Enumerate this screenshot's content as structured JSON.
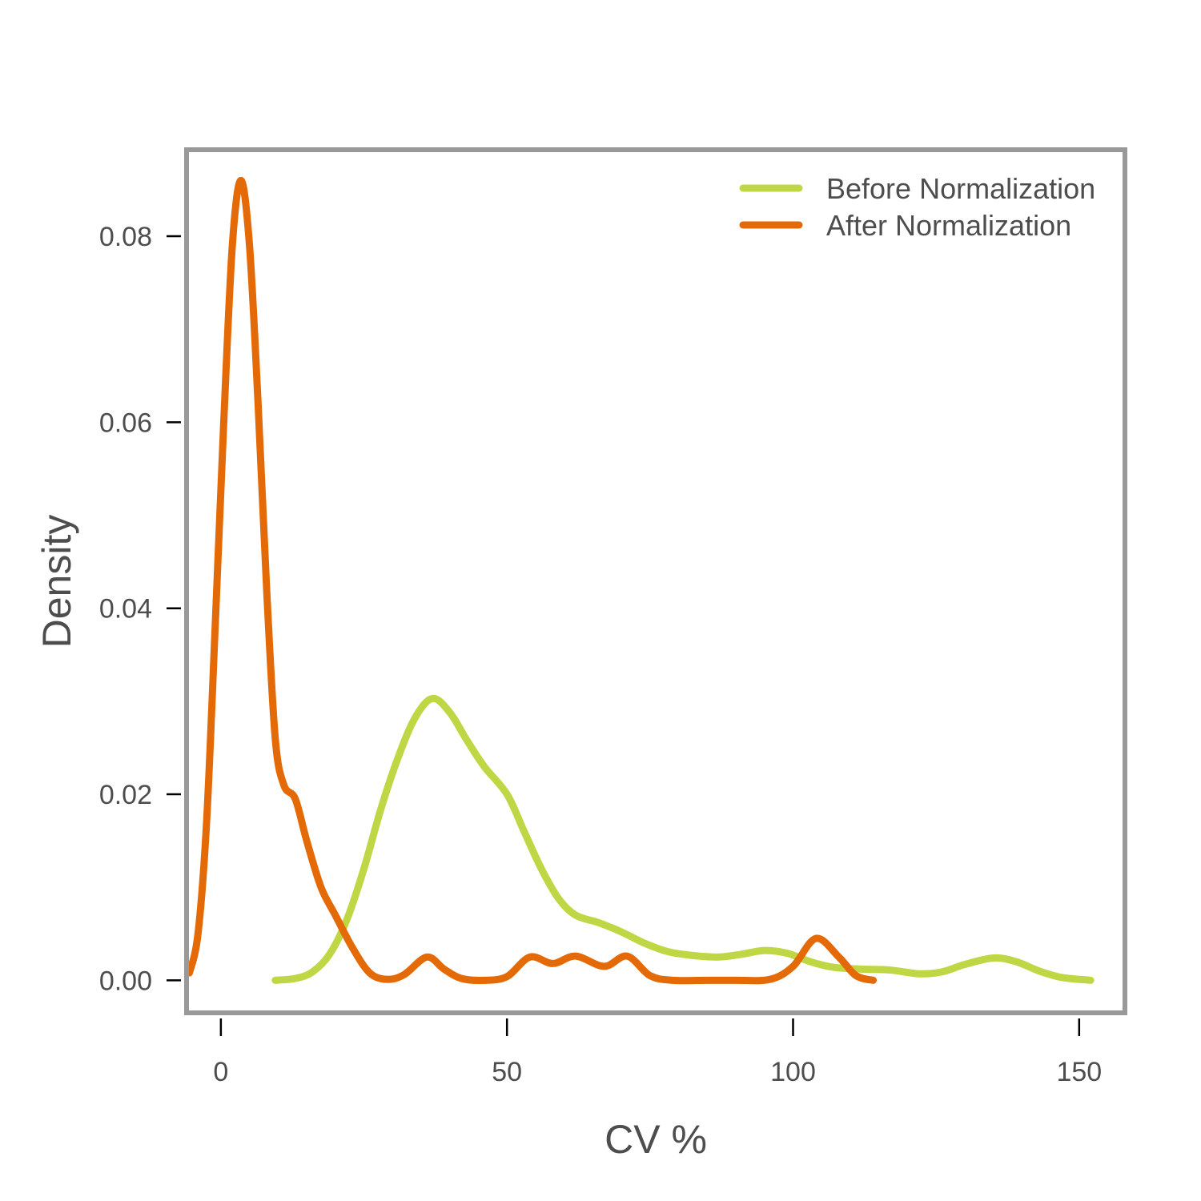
{
  "chart_data": {
    "type": "line",
    "title": "",
    "xlabel": "CV %",
    "ylabel": "Density",
    "xlim": [
      -6,
      158
    ],
    "ylim": [
      -0.0035,
      0.0893
    ],
    "x_ticks": [
      0,
      50,
      100,
      150
    ],
    "y_ticks": [
      0.0,
      0.02,
      0.04,
      0.06,
      0.08
    ],
    "x_tick_labels": [
      "0",
      "50",
      "100",
      "150"
    ],
    "y_tick_labels": [
      "0.00",
      "0.02",
      "0.04",
      "0.06",
      "0.08"
    ],
    "grid": false,
    "legend_position": "top-right",
    "frame_color": "#999999",
    "series": [
      {
        "name": "Before Normalization",
        "color": "#bfd744",
        "points": [
          [
            9.5,
            0.0
          ],
          [
            13,
            0.0002
          ],
          [
            16,
            0.0009
          ],
          [
            19,
            0.0028
          ],
          [
            22,
            0.0065
          ],
          [
            25,
            0.012
          ],
          [
            28,
            0.0185
          ],
          [
            31,
            0.024
          ],
          [
            34,
            0.0283
          ],
          [
            37,
            0.0303
          ],
          [
            40,
            0.0288
          ],
          [
            43,
            0.0258
          ],
          [
            46,
            0.023
          ],
          [
            50,
            0.02
          ],
          [
            53,
            0.016
          ],
          [
            56,
            0.012
          ],
          [
            59,
            0.0088
          ],
          [
            62,
            0.007
          ],
          [
            66,
            0.0062
          ],
          [
            70,
            0.0052
          ],
          [
            74,
            0.004
          ],
          [
            78,
            0.0031
          ],
          [
            82,
            0.0027
          ],
          [
            87,
            0.0025
          ],
          [
            91,
            0.0028
          ],
          [
            95,
            0.0032
          ],
          [
            99,
            0.0029
          ],
          [
            103,
            0.002
          ],
          [
            107,
            0.0014
          ],
          [
            112,
            0.0012
          ],
          [
            117,
            0.0011
          ],
          [
            122,
            0.0007
          ],
          [
            126,
            0.0009
          ],
          [
            130,
            0.0017
          ],
          [
            135,
            0.0024
          ],
          [
            139,
            0.002
          ],
          [
            143,
            0.001
          ],
          [
            147,
            0.0003
          ],
          [
            152,
            0.0
          ]
        ]
      },
      {
        "name": "After Normalization",
        "color": "#e46a08",
        "points": [
          [
            -5.5,
            0.0008
          ],
          [
            -4,
            0.005
          ],
          [
            -2.5,
            0.017
          ],
          [
            -1,
            0.038
          ],
          [
            0.5,
            0.06
          ],
          [
            2,
            0.079
          ],
          [
            3.5,
            0.086
          ],
          [
            5,
            0.079
          ],
          [
            6.5,
            0.062
          ],
          [
            8,
            0.042
          ],
          [
            9.5,
            0.026
          ],
          [
            11,
            0.021
          ],
          [
            13,
            0.0195
          ],
          [
            15,
            0.015
          ],
          [
            17.5,
            0.01
          ],
          [
            20,
            0.007
          ],
          [
            23,
            0.0035
          ],
          [
            26,
            0.0008
          ],
          [
            29,
            0.0001
          ],
          [
            32,
            0.0006
          ],
          [
            36,
            0.0025
          ],
          [
            39,
            0.0012
          ],
          [
            42,
            0.0002
          ],
          [
            46,
            0.0
          ],
          [
            50,
            0.0004
          ],
          [
            54,
            0.0025
          ],
          [
            58,
            0.0018
          ],
          [
            62,
            0.0026
          ],
          [
            67,
            0.0015
          ],
          [
            71,
            0.0026
          ],
          [
            75,
            0.0005
          ],
          [
            79,
            0.0
          ],
          [
            85,
            0.0
          ],
          [
            90,
            0.0
          ],
          [
            96,
            0.0001
          ],
          [
            100,
            0.0015
          ],
          [
            104,
            0.0045
          ],
          [
            108,
            0.0025
          ],
          [
            111,
            0.0005
          ],
          [
            114,
            0.0
          ]
        ]
      }
    ]
  }
}
